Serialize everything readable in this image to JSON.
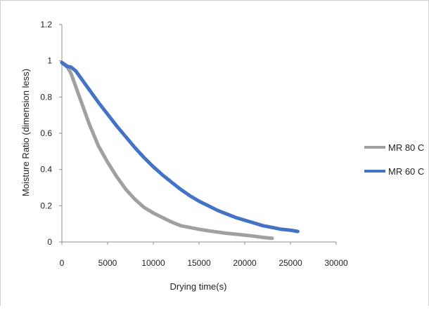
{
  "chart_data": {
    "type": "line",
    "title": "",
    "xlabel": "Drying time(s)",
    "ylabel": "Moisture Ratio (dimension less)",
    "xlim": [
      0,
      30000
    ],
    "ylim": [
      0,
      1.2
    ],
    "x_ticks": [
      "0",
      "5000",
      "10000",
      "15000",
      "20000",
      "25000",
      "30000"
    ],
    "y_ticks": [
      "0",
      "0.2",
      "0.4",
      "0.6",
      "0.8",
      "1",
      "1.2"
    ],
    "grid": false,
    "legend_position": "right",
    "series": [
      {
        "name": "MR 80 C",
        "color": "#a0a0a0",
        "x": [
          0,
          500,
          1000,
          1500,
          2000,
          3000,
          4000,
          5000,
          6000,
          7000,
          8000,
          9000,
          10000,
          11000,
          12000,
          13000,
          14000,
          15000,
          16000,
          17000,
          18000,
          19000,
          20000,
          21000,
          22000,
          23000
        ],
        "y": [
          0.99,
          0.975,
          0.93,
          0.86,
          0.79,
          0.65,
          0.53,
          0.44,
          0.36,
          0.29,
          0.235,
          0.19,
          0.16,
          0.135,
          0.11,
          0.09,
          0.08,
          0.07,
          0.062,
          0.055,
          0.048,
          0.043,
          0.038,
          0.032,
          0.025,
          0.02
        ]
      },
      {
        "name": "MR 60 C",
        "color": "#4472c4",
        "x": [
          0,
          500,
          1000,
          1500,
          2000,
          3000,
          4000,
          5000,
          6000,
          7000,
          8000,
          9000,
          10000,
          11000,
          12000,
          13000,
          14000,
          15000,
          16000,
          17000,
          18000,
          19000,
          20000,
          21000,
          22000,
          23000,
          24000,
          25000,
          25800
        ],
        "y": [
          0.99,
          0.97,
          0.965,
          0.945,
          0.91,
          0.84,
          0.77,
          0.705,
          0.64,
          0.58,
          0.52,
          0.465,
          0.415,
          0.37,
          0.33,
          0.29,
          0.255,
          0.225,
          0.2,
          0.175,
          0.155,
          0.135,
          0.12,
          0.105,
          0.09,
          0.08,
          0.07,
          0.065,
          0.058
        ]
      }
    ]
  }
}
